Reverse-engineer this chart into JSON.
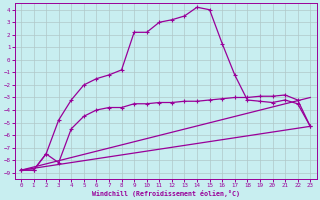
{
  "xlabel": "Windchill (Refroidissement éolien,°C)",
  "bg_color": "#c8eef0",
  "line_color": "#990099",
  "grid_color": "#b0c8c8",
  "xlim": [
    -0.5,
    23.5
  ],
  "ylim": [
    -9.5,
    4.5
  ],
  "xticks": [
    0,
    1,
    2,
    3,
    4,
    5,
    6,
    7,
    8,
    9,
    10,
    11,
    12,
    13,
    14,
    15,
    16,
    17,
    18,
    19,
    20,
    21,
    22,
    23
  ],
  "yticks": [
    4,
    3,
    2,
    1,
    0,
    -1,
    -2,
    -3,
    -4,
    -5,
    -6,
    -7,
    -8,
    -9
  ],
  "line1_x": [
    0,
    1,
    2,
    3,
    4,
    5,
    6,
    7,
    8,
    9,
    10,
    11,
    12,
    13,
    14,
    15,
    16,
    17,
    18,
    19,
    20,
    21,
    22,
    23
  ],
  "line1_y": [
    -8.8,
    -8.8,
    -7.5,
    -4.8,
    -3.2,
    -2.0,
    -1.5,
    -1.2,
    -0.8,
    2.2,
    2.2,
    3.0,
    3.2,
    3.5,
    4.2,
    4.0,
    1.3,
    -1.2,
    -3.2,
    -3.3,
    -3.4,
    -3.2,
    -3.5,
    -5.3
  ],
  "line2_x": [
    0,
    1,
    2,
    3,
    4,
    5,
    6,
    7,
    8,
    9,
    10,
    11,
    12,
    13,
    14,
    15,
    16,
    17,
    18,
    19,
    20,
    21,
    22,
    23
  ],
  "line2_y": [
    -8.8,
    -8.8,
    -7.5,
    -8.2,
    -5.5,
    -4.5,
    -4.0,
    -3.8,
    -3.8,
    -3.5,
    -3.5,
    -3.4,
    -3.4,
    -3.3,
    -3.3,
    -3.2,
    -3.1,
    -3.0,
    -3.0,
    -2.9,
    -2.9,
    -2.8,
    -3.2,
    -5.3
  ],
  "line3_x": [
    0,
    23
  ],
  "line3_y": [
    -8.8,
    -5.3
  ],
  "line4_x": [
    0,
    23
  ],
  "line4_y": [
    -8.8,
    -3.0
  ]
}
